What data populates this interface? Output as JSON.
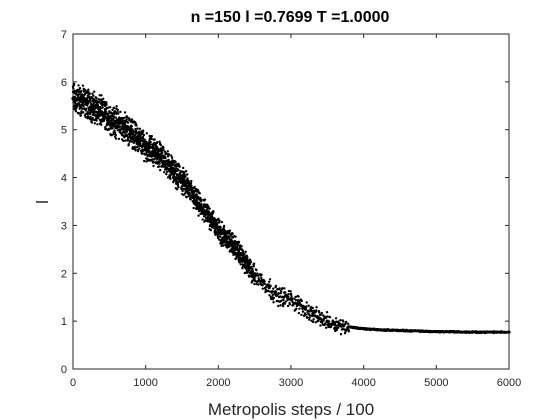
{
  "chart_data": {
    "type": "scatter",
    "title": "n =150   l =0.7699   T =1.0000",
    "xlabel": "Metropolis steps / 100",
    "ylabel": "l",
    "xlim": [
      0,
      6000
    ],
    "ylim": [
      0,
      7
    ],
    "xticks": [
      0,
      1000,
      2000,
      3000,
      4000,
      5000,
      6000
    ],
    "yticks": [
      0,
      1,
      2,
      3,
      4,
      5,
      6,
      7
    ],
    "grid": false,
    "box": true,
    "marker_color": "#000000",
    "series": [
      {
        "x": [
          0,
          100,
          200,
          300,
          400,
          500,
          600,
          700,
          800,
          900,
          1000,
          1100,
          1200,
          1300,
          1400,
          1500,
          1600,
          1700,
          1800,
          1900,
          2000,
          2100,
          2200,
          2300,
          2400,
          2500,
          2600,
          2700,
          2800,
          2900,
          3000,
          3100,
          3200,
          3300,
          3400,
          3500,
          3600,
          3700,
          3800,
          3900,
          4000,
          4200,
          4400,
          4600,
          4800,
          5000,
          5200,
          5400,
          5600,
          5800,
          6000
        ],
        "y": [
          5.65,
          5.6,
          5.55,
          5.45,
          5.35,
          5.25,
          5.15,
          5.05,
          4.95,
          4.8,
          4.65,
          4.55,
          4.45,
          4.3,
          4.1,
          3.95,
          3.75,
          3.5,
          3.3,
          3.15,
          2.9,
          2.75,
          2.6,
          2.4,
          2.15,
          1.95,
          1.85,
          1.7,
          1.55,
          1.5,
          1.45,
          1.35,
          1.25,
          1.15,
          1.05,
          1.0,
          0.95,
          0.9,
          0.88,
          0.86,
          0.84,
          0.82,
          0.81,
          0.8,
          0.79,
          0.78,
          0.78,
          0.77,
          0.77,
          0.77,
          0.77
        ]
      }
    ]
  }
}
